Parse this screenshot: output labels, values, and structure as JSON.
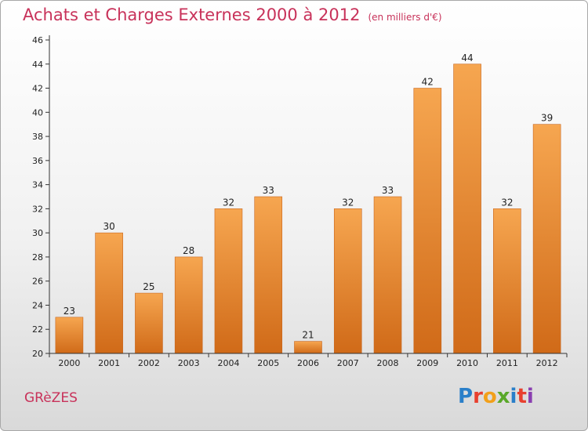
{
  "header": {
    "title": "Achats et Charges Externes 2000 à 2012",
    "subtitle": "(en milliers d'€)"
  },
  "footer": {
    "commune": "GRèZES",
    "logo_letters": [
      {
        "char": "P",
        "color": "#2a7fc9"
      },
      {
        "char": "r",
        "color": "#e8402f"
      },
      {
        "char": "o",
        "color": "#f2a01a"
      },
      {
        "char": "x",
        "color": "#5aa82a"
      },
      {
        "char": "i",
        "color": "#2a7fc9"
      },
      {
        "char": "t",
        "color": "#e8402f"
      },
      {
        "char": "i",
        "color": "#8a3fb0"
      }
    ]
  },
  "chart_data": {
    "type": "bar",
    "categories": [
      "2000",
      "2001",
      "2002",
      "2003",
      "2004",
      "2005",
      "2006",
      "2007",
      "2008",
      "2009",
      "2010",
      "2011",
      "2012"
    ],
    "values": [
      23,
      30,
      25,
      28,
      32,
      33,
      21,
      32,
      33,
      42,
      44,
      32,
      39
    ],
    "ylim": [
      20,
      46
    ],
    "yticks": [
      20,
      22,
      24,
      26,
      28,
      30,
      32,
      34,
      36,
      38,
      40,
      42,
      44,
      46
    ],
    "grid": false,
    "bar_color_top": "#f6a650",
    "bar_color_bottom": "#d06a18"
  }
}
